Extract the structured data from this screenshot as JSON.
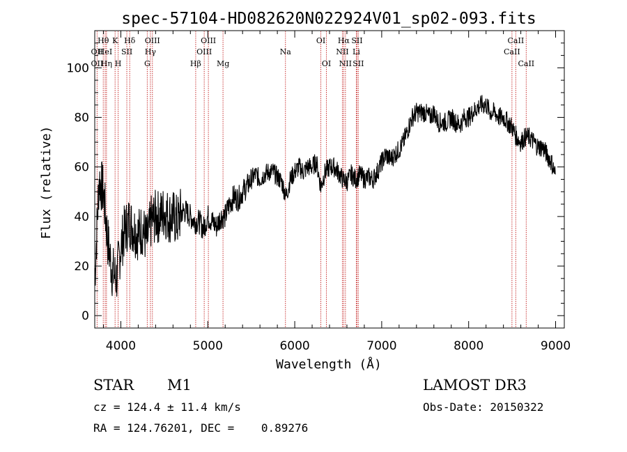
{
  "chart_data": {
    "type": "line",
    "title": "spec-57104-HD082620N022924V01_sp02-093.fits",
    "xlabel": "Wavelength (Å)",
    "ylabel": "Flux (relative)",
    "xlim": [
      3700,
      9100
    ],
    "ylim": [
      -5,
      115
    ],
    "xticks": [
      4000,
      5000,
      6000,
      7000,
      8000,
      9000
    ],
    "yticks": [
      0,
      20,
      40,
      60,
      80,
      100
    ],
    "grid": false,
    "series": [
      {
        "name": "spectrum",
        "x": [
          3700,
          3750,
          3800,
          3850,
          3900,
          3950,
          4000,
          4050,
          4100,
          4150,
          4200,
          4250,
          4300,
          4350,
          4400,
          4450,
          4500,
          4550,
          4600,
          4650,
          4700,
          4750,
          4800,
          4850,
          4900,
          4950,
          5000,
          5050,
          5100,
          5150,
          5200,
          5250,
          5300,
          5350,
          5400,
          5450,
          5500,
          5550,
          5600,
          5650,
          5700,
          5750,
          5800,
          5850,
          5900,
          5950,
          6000,
          6050,
          6100,
          6150,
          6200,
          6250,
          6300,
          6350,
          6400,
          6450,
          6500,
          6550,
          6600,
          6650,
          6700,
          6750,
          6800,
          6850,
          6900,
          6950,
          7000,
          7050,
          7100,
          7150,
          7200,
          7250,
          7300,
          7350,
          7400,
          7450,
          7500,
          7550,
          7600,
          7650,
          7700,
          7750,
          7800,
          7850,
          7900,
          7950,
          8000,
          8050,
          8100,
          8150,
          8200,
          8250,
          8300,
          8350,
          8400,
          8450,
          8500,
          8550,
          8600,
          8650,
          8700,
          8750,
          8800,
          8850,
          8900,
          8950,
          9000
        ],
        "values": [
          15,
          55,
          50,
          30,
          18,
          15,
          28,
          35,
          38,
          35,
          33,
          35,
          30,
          38,
          40,
          40,
          42,
          40,
          40,
          38,
          42,
          42,
          40,
          38,
          38,
          35,
          40,
          38,
          36,
          40,
          40,
          45,
          48,
          47,
          50,
          52,
          55,
          57,
          55,
          57,
          58,
          58,
          56,
          54,
          48,
          55,
          58,
          60,
          58,
          60,
          60,
          62,
          52,
          58,
          60,
          60,
          58,
          55,
          54,
          57,
          55,
          57,
          55,
          56,
          55,
          58,
          62,
          65,
          63,
          65,
          67,
          70,
          75,
          80,
          82,
          82,
          82,
          80,
          82,
          78,
          78,
          78,
          80,
          78,
          77,
          80,
          80,
          82,
          84,
          85,
          85,
          82,
          82,
          80,
          80,
          78,
          76,
          72,
          70,
          72,
          72,
          70,
          68,
          68,
          65,
          62,
          57
        ]
      }
    ],
    "lines": [
      {
        "label": "OII",
        "wavelength": 3727,
        "row": 2
      },
      {
        "label": "OII",
        "wavelength": 3727,
        "row": 3
      },
      {
        "label": "Hθ",
        "wavelength": 3798,
        "row": 1
      },
      {
        "label": "HeI",
        "wavelength": 3820,
        "row": 2
      },
      {
        "label": "Hη",
        "wavelength": 3835,
        "row": 3
      },
      {
        "label": "K",
        "wavelength": 3934,
        "row": 1
      },
      {
        "label": "SII",
        "wavelength": 4069,
        "row": 2
      },
      {
        "label": "H",
        "wavelength": 3969,
        "row": 3
      },
      {
        "label": "Hδ",
        "wavelength": 4102,
        "row": 1
      },
      {
        "label": "OIII",
        "wavelength": 4363,
        "row": 1
      },
      {
        "label": "Hγ",
        "wavelength": 4340,
        "row": 2
      },
      {
        "label": "G",
        "wavelength": 4304,
        "row": 3
      },
      {
        "label": "OIII",
        "wavelength": 5007,
        "row": 1
      },
      {
        "label": "OIII",
        "wavelength": 4959,
        "row": 2
      },
      {
        "label": "Hβ",
        "wavelength": 4861,
        "row": 3
      },
      {
        "label": "Mg",
        "wavelength": 5175,
        "row": 3
      },
      {
        "label": "Na",
        "wavelength": 5893,
        "row": 2
      },
      {
        "label": "OI",
        "wavelength": 6300,
        "row": 1
      },
      {
        "label": "OI",
        "wavelength": 6364,
        "row": 3
      },
      {
        "label": "Hα",
        "wavelength": 6563,
        "row": 1
      },
      {
        "label": "SII",
        "wavelength": 6716,
        "row": 1
      },
      {
        "label": "NII",
        "wavelength": 6548,
        "row": 2
      },
      {
        "label": "Li",
        "wavelength": 6708,
        "row": 2
      },
      {
        "label": "NII",
        "wavelength": 6583,
        "row": 3
      },
      {
        "label": "SII",
        "wavelength": 6731,
        "row": 3
      },
      {
        "label": "CaII",
        "wavelength": 8542,
        "row": 1
      },
      {
        "label": "CaII",
        "wavelength": 8498,
        "row": 2
      },
      {
        "label": "CaII",
        "wavelength": 8662,
        "row": 3
      }
    ]
  },
  "info": {
    "object_class": "STAR",
    "subclass": "M1",
    "survey": "LAMOST DR3",
    "cz": "cz = 124.4 ± 11.4 km/s",
    "obs_date": "Obs-Date: 20150322",
    "coords": "RA = 124.76201, DEC =    0.89276"
  }
}
